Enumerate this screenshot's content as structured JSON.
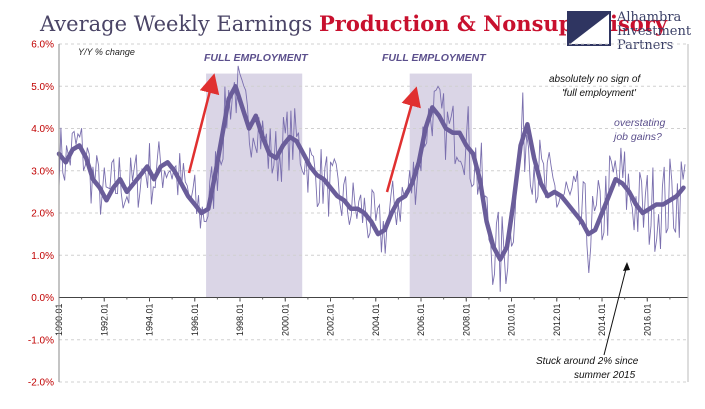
{
  "header": {
    "title_plain": "Average Weekly Earnings ",
    "title_bold": "Production & Nonsupervisory",
    "y_label": "Y/Y % change"
  },
  "logo": {
    "lines": [
      "Alhambra",
      "Investment",
      "Partners"
    ]
  },
  "annotations": {
    "full_employment_1": "FULL EMPLOYMENT",
    "full_employment_2": "FULL EMPLOYMENT",
    "no_sign_line1": "absolutely no sign of",
    "no_sign_line2": "'full employment'",
    "overstating_line1": "overstating",
    "overstating_line2": "job gains?",
    "stuck_line1": "Stuck around 2% since",
    "stuck_line2": "summer 2015"
  },
  "colors": {
    "line": "#6a5d9a",
    "thin_line": "#7a6fae",
    "band": "#dad5e6",
    "arrow": "#e03030",
    "title_bold": "#c8102e"
  },
  "chart_data": {
    "type": "line",
    "title": "Average Weekly Earnings Production & Nonsupervisory",
    "ylabel": "Y/Y % change",
    "ylim": [
      -2.0,
      6.0
    ],
    "xlim": [
      1990.0,
      2017.8
    ],
    "y_ticks": [
      "6.0%",
      "5.0%",
      "4.0%",
      "3.0%",
      "2.0%",
      "1.0%",
      "0.0%",
      "-1.0%",
      "-2.0%"
    ],
    "y_tick_values": [
      6,
      5,
      4,
      3,
      2,
      1,
      0,
      -1,
      -2
    ],
    "x_ticks": [
      "1990.01",
      "1992.01",
      "1994.01",
      "1996.01",
      "1998.01",
      "2000.01",
      "2002.01",
      "2004.01",
      "2006.01",
      "2008.01",
      "2010.01",
      "2012.01",
      "2014.01",
      "2016.01"
    ],
    "x_tick_values": [
      1990,
      1992,
      1994,
      1996,
      1998,
      2000,
      2002,
      2004,
      2006,
      2008,
      2010,
      2012,
      2014,
      2016
    ],
    "shaded_periods": [
      {
        "label": "FULL EMPLOYMENT",
        "start": 1996.5,
        "end": 2000.75
      },
      {
        "label": "FULL EMPLOYMENT",
        "start": 2005.5,
        "end": 2008.25
      }
    ],
    "series": [
      {
        "style": "smoothed (thick)",
        "x": [
          1990.0,
          1990.3,
          1990.6,
          1990.9,
          1991.2,
          1991.5,
          1991.8,
          1992.1,
          1992.4,
          1992.7,
          1993.0,
          1993.3,
          1993.6,
          1993.9,
          1994.2,
          1994.5,
          1994.8,
          1995.1,
          1995.4,
          1995.7,
          1996.0,
          1996.3,
          1996.6,
          1996.9,
          1997.2,
          1997.5,
          1997.8,
          1998.1,
          1998.4,
          1998.7,
          1999.0,
          1999.3,
          1999.6,
          1999.9,
          2000.2,
          2000.5,
          2000.8,
          2001.1,
          2001.4,
          2001.7,
          2002.0,
          2002.3,
          2002.6,
          2002.9,
          2003.2,
          2003.5,
          2003.8,
          2004.1,
          2004.4,
          2004.7,
          2005.0,
          2005.3,
          2005.6,
          2005.9,
          2006.2,
          2006.5,
          2006.8,
          2007.1,
          2007.4,
          2007.7,
          2008.0,
          2008.3,
          2008.6,
          2008.9,
          2009.2,
          2009.5,
          2009.8,
          2010.1,
          2010.4,
          2010.7,
          2011.0,
          2011.3,
          2011.6,
          2011.9,
          2012.2,
          2012.5,
          2012.8,
          2013.1,
          2013.4,
          2013.7,
          2014.0,
          2014.3,
          2014.6,
          2014.9,
          2015.2,
          2015.5,
          2015.8,
          2016.1,
          2016.4,
          2016.7,
          2017.0,
          2017.3,
          2017.6
        ],
        "values": [
          3.4,
          3.2,
          3.5,
          3.6,
          3.3,
          2.8,
          2.6,
          2.3,
          2.6,
          2.8,
          2.5,
          2.7,
          2.9,
          3.1,
          2.8,
          3.1,
          3.2,
          3.0,
          2.7,
          2.4,
          2.2,
          2.0,
          2.1,
          2.9,
          3.8,
          4.7,
          5.0,
          4.5,
          4.0,
          4.3,
          3.8,
          3.4,
          3.3,
          3.6,
          3.8,
          3.7,
          3.4,
          3.1,
          2.9,
          2.8,
          2.6,
          2.4,
          2.3,
          2.1,
          2.1,
          2.0,
          1.8,
          1.5,
          1.6,
          2.0,
          2.3,
          2.4,
          2.7,
          3.2,
          4.0,
          4.5,
          4.3,
          4.0,
          3.9,
          3.9,
          3.6,
          3.4,
          2.8,
          1.8,
          1.2,
          0.9,
          1.2,
          2.3,
          3.6,
          4.1,
          3.3,
          2.7,
          2.4,
          2.5,
          2.4,
          2.2,
          2.0,
          1.8,
          1.5,
          1.6,
          2.0,
          2.4,
          2.8,
          2.7,
          2.5,
          2.2,
          2.0,
          2.1,
          2.2,
          2.2,
          2.3,
          2.4,
          2.6
        ]
      }
    ]
  }
}
